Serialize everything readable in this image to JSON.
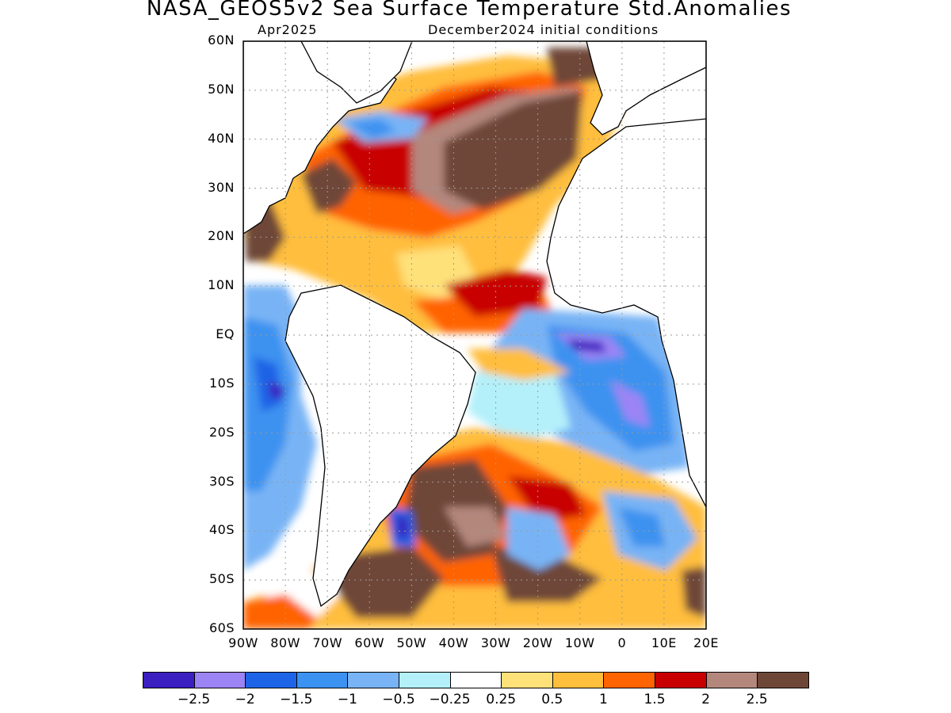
{
  "title": "NASA_GEOS5v2 Sea Surface Temperature Std.Anomalies",
  "subtitle_left": "Apr2025",
  "subtitle_right": "December2024 initial conditions",
  "map": {
    "lon_range": [
      -90,
      20
    ],
    "lat_range": [
      -60,
      60
    ],
    "grid": "dotted",
    "y_ticks": [
      "60N",
      "50N",
      "40N",
      "30N",
      "20N",
      "10N",
      "EQ",
      "10S",
      "20S",
      "30S",
      "40S",
      "50S",
      "60S"
    ],
    "x_ticks": [
      "90W",
      "80W",
      "70W",
      "60W",
      "50W",
      "40W",
      "30W",
      "20W",
      "10W",
      "0",
      "10E",
      "20E"
    ]
  },
  "colorbar": {
    "colors": [
      "#3b1fc0",
      "#9c84f5",
      "#1e64e6",
      "#3c92f0",
      "#78b4f5",
      "#b4f0fa",
      "#ffffff",
      "#ffe17a",
      "#ffbe3c",
      "#ff6400",
      "#c80000",
      "#b4877d",
      "#6e4637"
    ],
    "labels": [
      "−2.5",
      "−2",
      "−1.5",
      "−1",
      "−0.5",
      "−0.25",
      "0.25",
      "0.5",
      "1",
      "1.5",
      "2",
      "2.5"
    ]
  }
}
